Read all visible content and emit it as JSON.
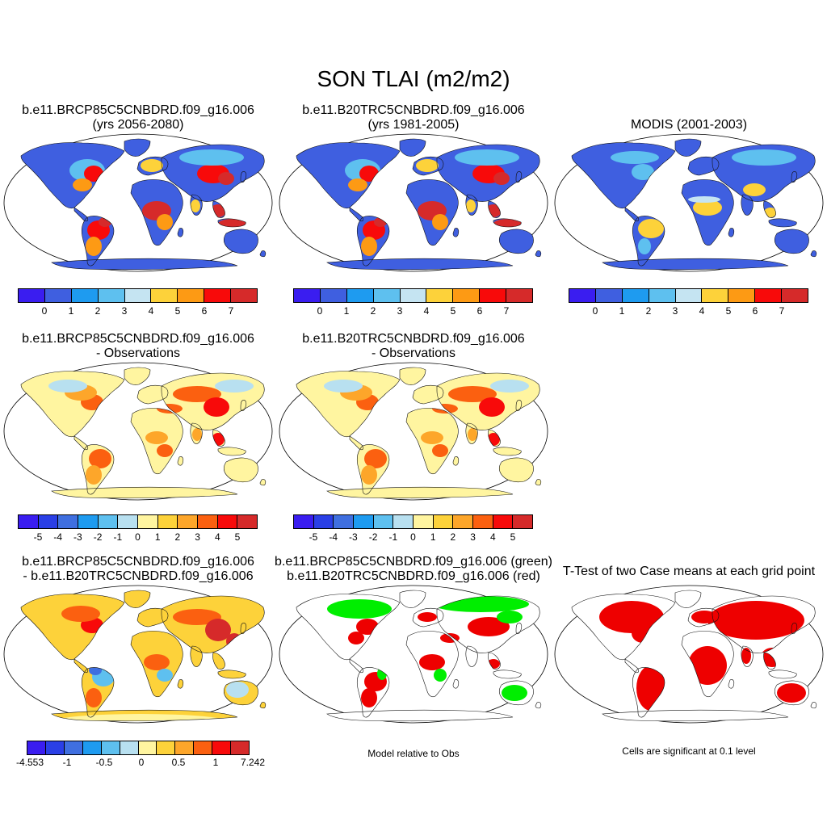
{
  "figure": {
    "title": "SON TLAI (m2/m2)"
  },
  "colors": {
    "absolute": [
      "#3a1df0",
      "#3f5fe0",
      "#1e9bf0",
      "#5ec0ef",
      "#c5e4f2",
      "#fdd23a",
      "#fd9a14",
      "#f80a0a",
      "#d62a2a"
    ],
    "difference": [
      "#3a1df0",
      "#2a3fe6",
      "#3f6fe0",
      "#1e9bf0",
      "#5ec0ef",
      "#b8e0f0",
      "#fff5a0",
      "#fdd23a",
      "#fda62a",
      "#fb6010",
      "#f80a0a",
      "#d62a2a"
    ],
    "case_diff": [
      "#3a1df0",
      "#2a3fe6",
      "#3f6fe0",
      "#1e9bf0",
      "#5ec0ef",
      "#b8e0f0",
      "#fff5a0",
      "#fdd23a",
      "#fda62a",
      "#fb6010",
      "#f80a0a",
      "#d62a2a"
    ],
    "green": "#00ee00",
    "red": "#ee0000"
  },
  "panels": {
    "p1": {
      "line1": "b.e11.BRCP85C5CNBDRD.f09_g16.006",
      "line2": "(yrs 2056-2080)"
    },
    "p2": {
      "line1": "b.e11.B20TRC5CNBDRD.f09_g16.006",
      "line2": "(yrs 1981-2005)"
    },
    "p3": {
      "line1": "",
      "line2": "MODIS (2001-2003)"
    },
    "p4": {
      "line1": "b.e11.BRCP85C5CNBDRD.f09_g16.006",
      "line2": "- Observations"
    },
    "p5": {
      "line1": "b.e11.B20TRC5CNBDRD.f09_g16.006",
      "line2": "- Observations"
    },
    "p7": {
      "line1": "b.e11.BRCP85C5CNBDRD.f09_g16.006",
      "line2": "- b.e11.B20TRC5CNBDRD.f09_g16.006"
    },
    "p8": {
      "line1": "b.e11.BRCP85C5CNBDRD.f09_g16.006 (green)",
      "line2": "b.e11.B20TRC5CNBDRD.f09_g16.006 (red)"
    },
    "p9": {
      "line1": "",
      "line2": "T-Test of two Case means at each grid point"
    }
  },
  "colorbars": {
    "absolute_ticks": [
      "0",
      "1",
      "2",
      "3",
      "4",
      "5",
      "6",
      "7"
    ],
    "difference_ticks": [
      "-5",
      "-4",
      "-3",
      "-2",
      "-1",
      "0",
      "1",
      "2",
      "3",
      "4",
      "5"
    ],
    "case_diff_ticks": [
      "-4.553",
      "-1",
      "-0.5",
      "0",
      "0.5",
      "1",
      "7.242"
    ]
  },
  "notes": {
    "model_vs_obs": "Model relative to Obs",
    "significance": "Cells are significant at 0.1 level"
  }
}
